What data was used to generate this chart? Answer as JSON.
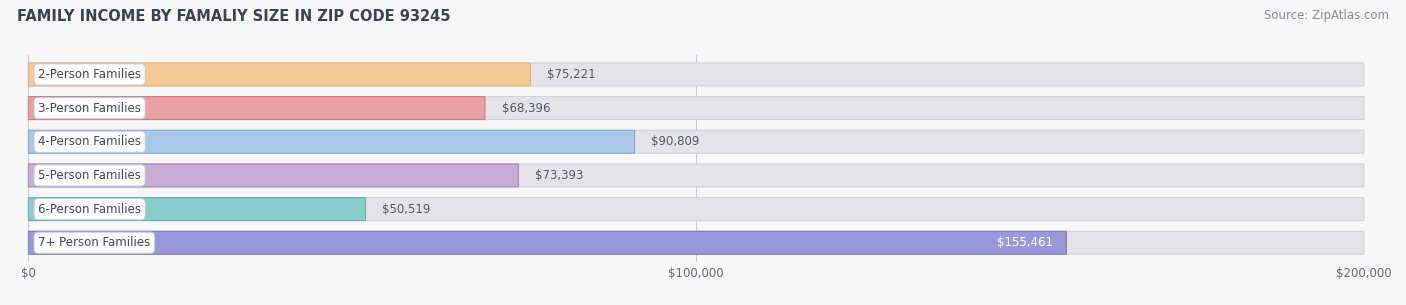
{
  "title": "FAMILY INCOME BY FAMALIY SIZE IN ZIP CODE 93245",
  "source": "Source: ZipAtlas.com",
  "categories": [
    "2-Person Families",
    "3-Person Families",
    "4-Person Families",
    "5-Person Families",
    "6-Person Families",
    "7+ Person Families"
  ],
  "values": [
    75221,
    68396,
    90809,
    73393,
    50519,
    155461
  ],
  "bar_colors": [
    "#f5c896",
    "#e8a0a0",
    "#a8c8e8",
    "#c8aed4",
    "#88cccc",
    "#9898d8"
  ],
  "bar_edge_colors": [
    "#e8b070",
    "#d07878",
    "#7aaacf",
    "#9888b8",
    "#55b0b0",
    "#7878c0"
  ],
  "value_labels": [
    "$75,221",
    "$68,396",
    "$90,809",
    "$73,393",
    "$50,519",
    "$155,461"
  ],
  "xlim": [
    0,
    200000
  ],
  "xtick_values": [
    0,
    100000,
    200000
  ],
  "xtick_labels": [
    "$0",
    "$100,000",
    "$200,000"
  ],
  "title_fontsize": 10.5,
  "source_fontsize": 8.5,
  "label_fontsize": 8.5,
  "value_fontsize": 8.5,
  "tick_fontsize": 8.5,
  "bar_height": 0.68,
  "background_color": "#f7f7f7",
  "bar_bg_color": "#e4e4e8",
  "bar_bg_edge_color": "#d0d0d8",
  "grid_color": "#c8c8d0",
  "label_box_color": "#ffffff",
  "label_text_color": "#444455",
  "value_text_color_outside": "#555566",
  "value_text_color_inside": "#ffffff"
}
